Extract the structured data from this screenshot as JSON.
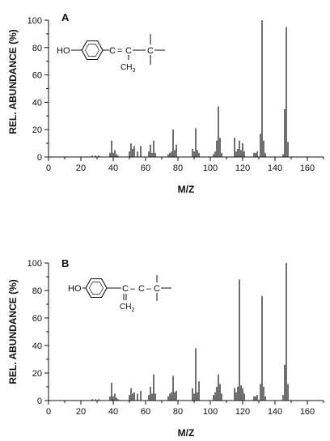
{
  "chart_data": [
    {
      "type": "bar",
      "panel_label": "A",
      "xlabel": "M/Z",
      "ylabel": "REL. ABUNDANCE (%)",
      "xlim": [
        0,
        170
      ],
      "ylim": [
        0,
        100
      ],
      "xticks": [
        0,
        20,
        40,
        60,
        80,
        100,
        120,
        140,
        160
      ],
      "yticks": [
        0,
        20,
        40,
        60,
        80,
        100
      ],
      "structure": {
        "ho": "HO",
        "c1": "C",
        "eq": "=",
        "c2": "C",
        "dash": "–",
        "c3": "C",
        "methyl": "CH3"
      },
      "x": [
        27,
        29,
        31,
        38,
        39,
        40,
        41,
        42,
        43,
        50,
        51,
        52,
        53,
        55,
        57,
        62,
        63,
        64,
        65,
        66,
        74,
        75,
        76,
        77,
        78,
        79,
        89,
        90,
        91,
        92,
        93,
        102,
        103,
        104,
        105,
        106,
        107,
        115,
        116,
        117,
        118,
        119,
        120,
        121,
        127,
        128,
        129,
        131,
        132,
        133,
        134,
        145,
        146,
        147,
        148
      ],
      "values": [
        1,
        1,
        1,
        3,
        12,
        3,
        5,
        2,
        1,
        4,
        10,
        6,
        8,
        4,
        8,
        4,
        9,
        3,
        12,
        3,
        2,
        3,
        4,
        20,
        5,
        9,
        6,
        4,
        21,
        5,
        3,
        2,
        4,
        12,
        37,
        14,
        3,
        14,
        4,
        6,
        12,
        5,
        10,
        4,
        3,
        3,
        4,
        17,
        100,
        12,
        3,
        2,
        35,
        95,
        11
      ]
    },
    {
      "type": "bar",
      "panel_label": "B",
      "xlabel": "M/Z",
      "ylabel": "REL. ABUNDANCE (%)",
      "xlim": [
        0,
        170
      ],
      "ylim": [
        0,
        100
      ],
      "xticks": [
        0,
        20,
        40,
        60,
        80,
        100,
        120,
        140,
        160
      ],
      "yticks": [
        0,
        20,
        40,
        60,
        80,
        100
      ],
      "structure": {
        "ho": "HO",
        "c1": "C",
        "dash1": "–",
        "c2": "C",
        "dash2": "–",
        "c3": "C",
        "methylene": "CH2"
      },
      "x": [
        27,
        29,
        31,
        38,
        39,
        40,
        41,
        42,
        43,
        50,
        51,
        52,
        53,
        55,
        57,
        62,
        63,
        64,
        65,
        66,
        74,
        75,
        76,
        77,
        78,
        79,
        89,
        90,
        91,
        92,
        93,
        102,
        103,
        104,
        105,
        106,
        107,
        115,
        116,
        117,
        118,
        119,
        120,
        121,
        127,
        128,
        129,
        131,
        132,
        133,
        134,
        145,
        146,
        147,
        148
      ],
      "values": [
        1,
        1,
        1,
        3,
        13,
        3,
        5,
        2,
        1,
        4,
        9,
        5,
        6,
        5,
        7,
        4,
        10,
        5,
        19,
        5,
        3,
        5,
        6,
        18,
        6,
        7,
        9,
        5,
        38,
        6,
        14,
        4,
        6,
        10,
        19,
        12,
        5,
        9,
        6,
        10,
        88,
        11,
        9,
        5,
        3,
        3,
        4,
        12,
        76,
        10,
        3,
        4,
        26,
        100,
        12
      ]
    }
  ]
}
